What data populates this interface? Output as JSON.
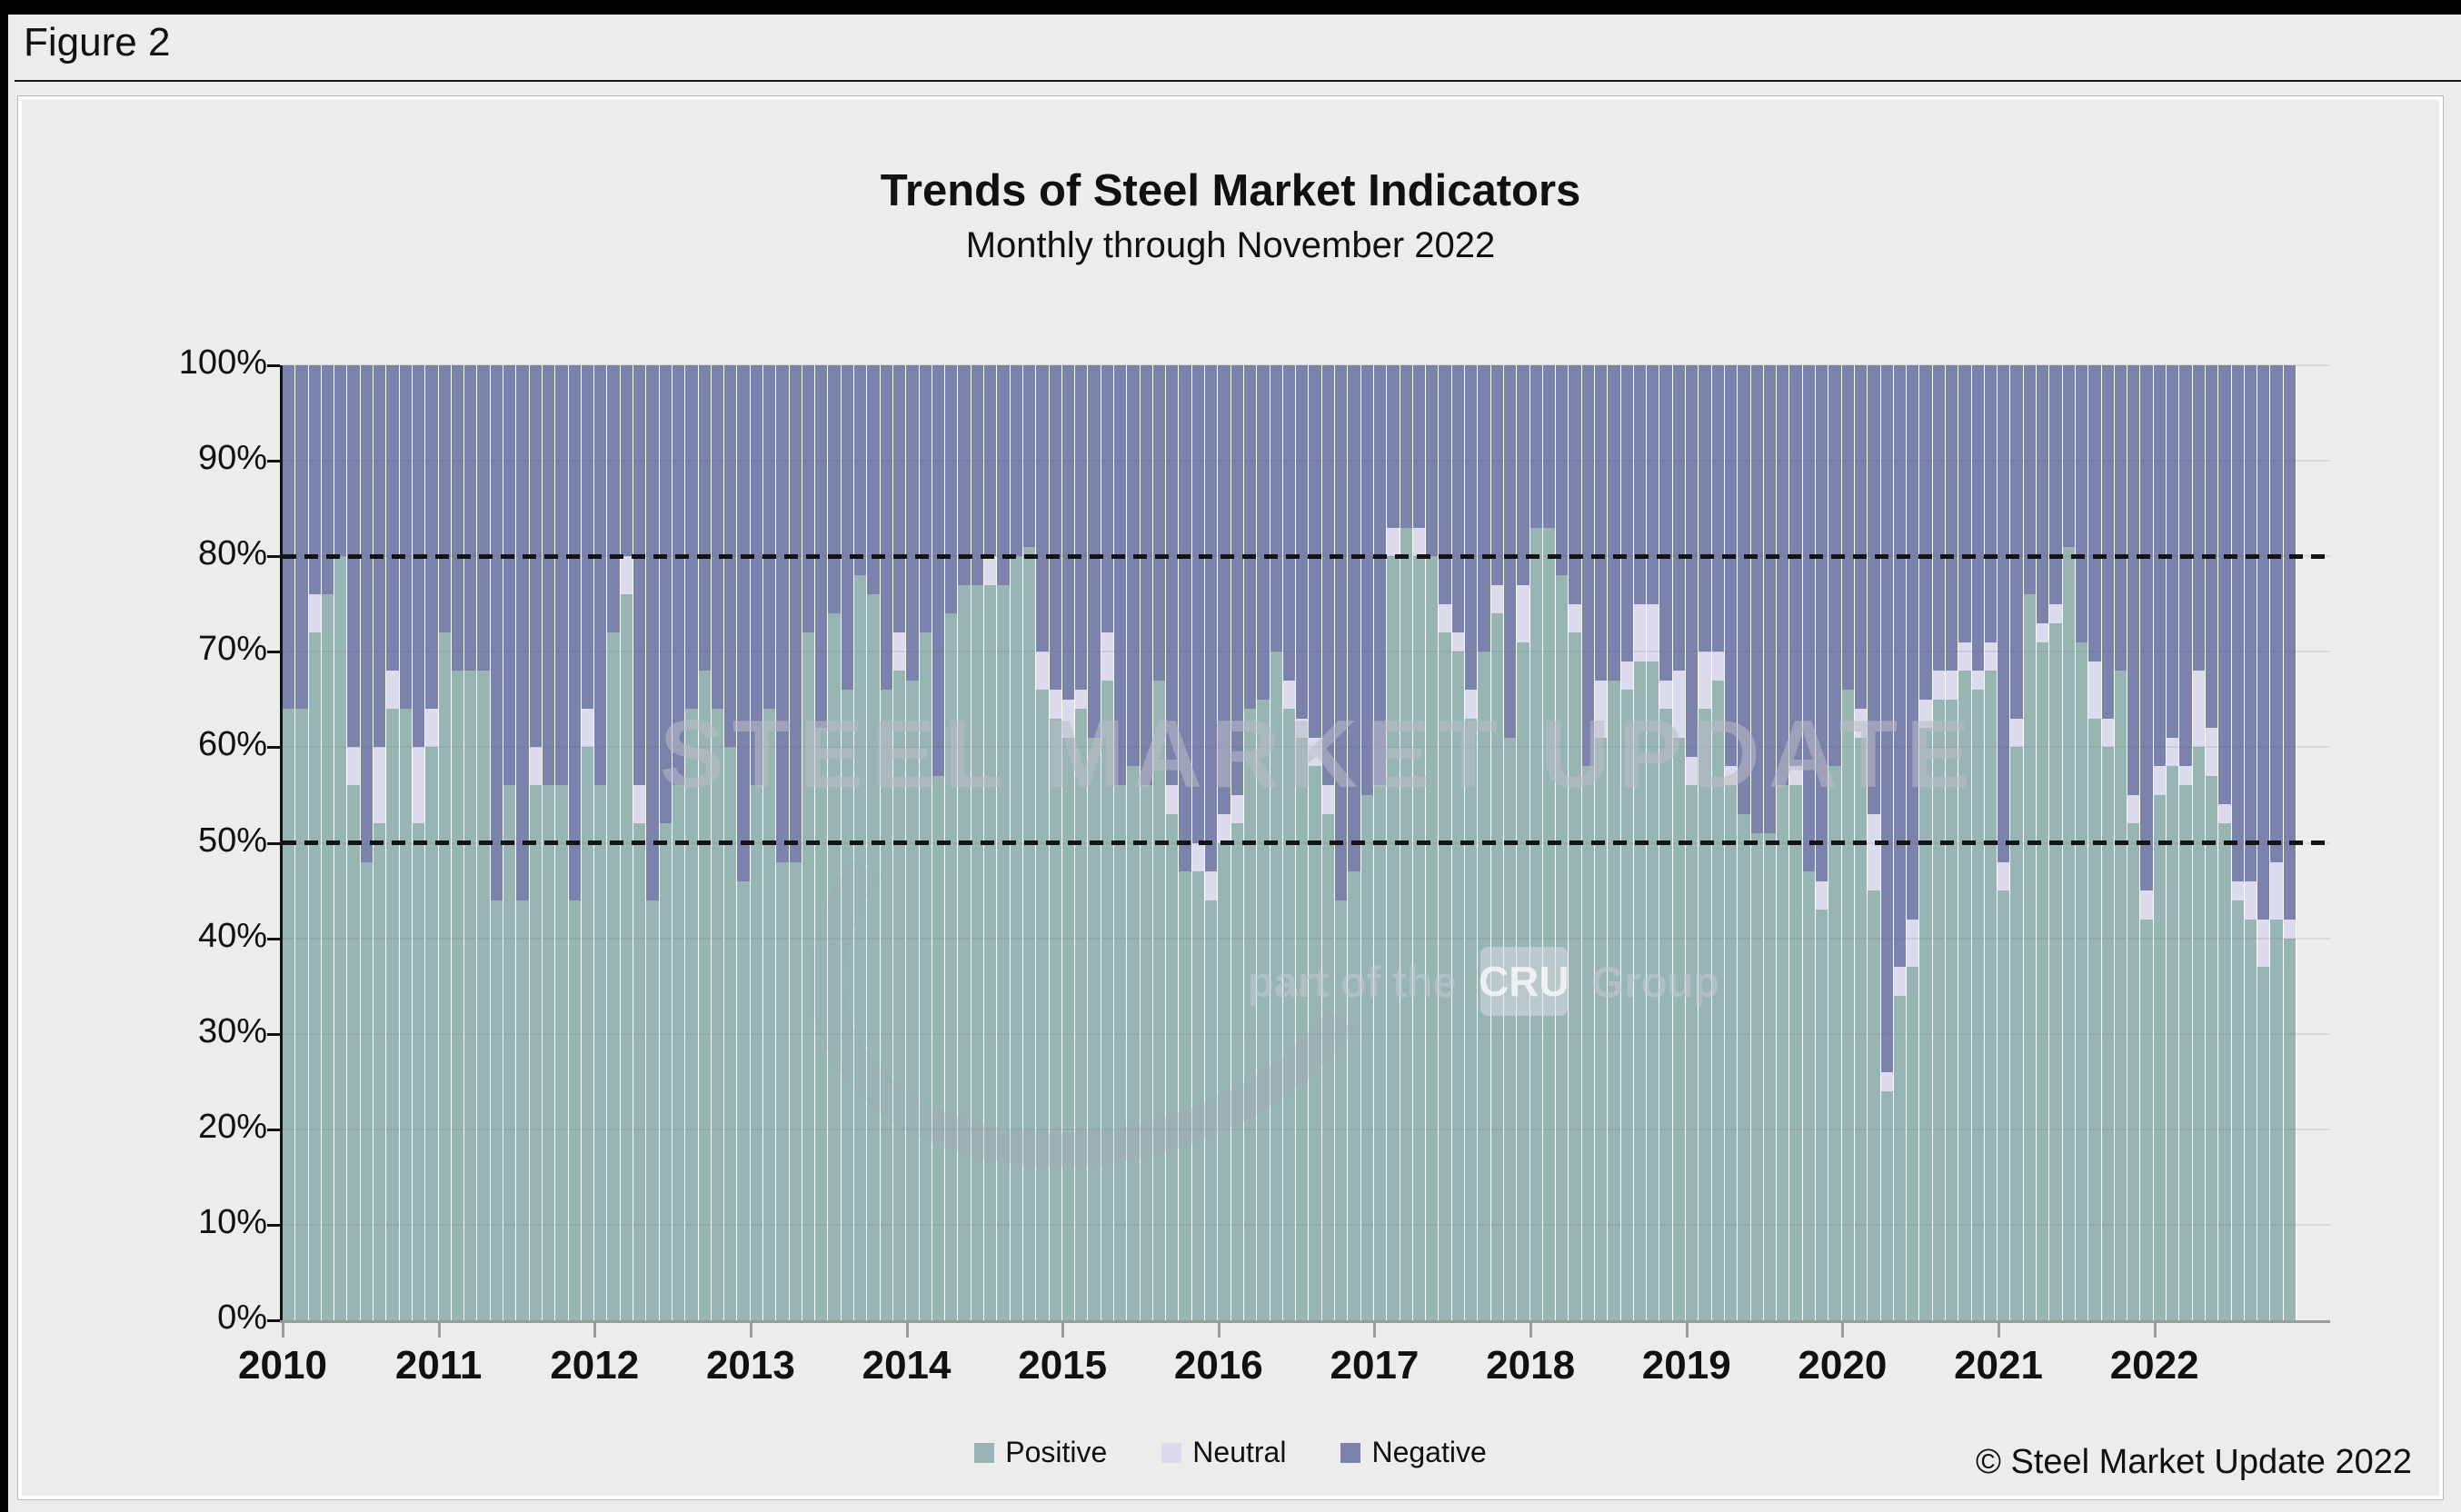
{
  "window": {
    "figure_label": "Figure 2"
  },
  "header": {
    "title": "Trends of Steel Market Indicators",
    "subtitle": "Monthly through November 2022"
  },
  "footer": {
    "copyright": "© Steel Market Update 2022"
  },
  "watermark": {
    "line1": "STEEL MARKET UPDATE",
    "line2_prefix": "part of the",
    "badge": "CRU",
    "line2_suffix": "Group"
  },
  "legend": [
    {
      "label": "Positive",
      "color": "#97b5b2"
    },
    {
      "label": "Neutral",
      "color": "#dcdbee"
    },
    {
      "label": "Negative",
      "color": "#7b82ab"
    }
  ],
  "colors": {
    "positive": "#97b5b2",
    "neutral": "#dcdbee",
    "negative": "#7b82ab",
    "background": "#ececec",
    "axis_x": "#9b9b9b",
    "axis_y": "#111111",
    "reference_line": "#141414"
  },
  "chart_data": {
    "type": "bar",
    "stacked": true,
    "unit": "percent",
    "title": "Trends of Steel Market Indicators",
    "subtitle": "Monthly through November 2022",
    "x_start": "2010-01",
    "x_end": "2022-11",
    "months_per_year": 12,
    "x_tick_labels": [
      "2010",
      "2011",
      "2012",
      "2013",
      "2014",
      "2015",
      "2016",
      "2017",
      "2018",
      "2019",
      "2020",
      "2021",
      "2022"
    ],
    "y_tick_labels": [
      "0%",
      "10%",
      "20%",
      "30%",
      "40%",
      "50%",
      "60%",
      "70%",
      "80%",
      "90%",
      "100%"
    ],
    "ylim": [
      0,
      100
    ],
    "grid": true,
    "reference_lines": [
      50,
      80
    ],
    "legend_position": "bottom",
    "series": [
      {
        "name": "Positive",
        "color": "#97b5b2",
        "values": [
          64,
          64,
          72,
          76,
          80,
          56,
          48,
          52,
          64,
          64,
          52,
          60,
          72,
          68,
          68,
          68,
          44,
          56,
          44,
          56,
          56,
          56,
          44,
          60,
          56,
          72,
          76,
          52,
          44,
          52,
          56,
          64,
          68,
          64,
          60,
          46,
          56,
          64,
          48,
          48,
          72,
          62,
          74,
          66,
          78,
          76,
          66,
          68,
          67,
          72,
          57,
          74,
          77,
          77,
          77,
          77,
          80,
          81,
          66,
          63,
          61,
          64,
          61,
          67,
          56,
          58,
          56,
          67,
          53,
          47,
          47,
          44,
          50,
          52,
          64,
          65,
          70,
          64,
          61,
          58,
          53,
          44,
          47,
          55,
          56,
          80,
          83,
          80,
          80,
          72,
          70,
          63,
          70,
          74,
          61,
          71,
          83,
          83,
          78,
          72,
          58,
          61,
          67,
          66,
          69,
          69,
          64,
          61,
          56,
          64,
          67,
          56,
          53,
          51,
          51,
          56,
          56,
          47,
          43,
          58,
          66,
          61,
          45,
          24,
          34,
          37,
          62,
          65,
          65,
          68,
          66,
          68,
          45,
          60,
          76,
          71,
          73,
          81,
          71,
          63,
          60,
          68,
          52,
          42,
          55,
          58,
          56,
          60,
          57,
          52,
          44,
          42,
          37,
          42,
          40
        ]
      },
      {
        "name": "Neutral",
        "color": "#dcdbee",
        "values": [
          0,
          0,
          4,
          0,
          0,
          4,
          0,
          8,
          4,
          0,
          8,
          4,
          0,
          0,
          0,
          0,
          0,
          0,
          0,
          4,
          0,
          0,
          0,
          4,
          0,
          0,
          4,
          4,
          0,
          0,
          0,
          0,
          0,
          0,
          0,
          0,
          0,
          0,
          0,
          0,
          0,
          0,
          0,
          0,
          0,
          0,
          0,
          4,
          0,
          0,
          0,
          0,
          0,
          0,
          3,
          0,
          0,
          0,
          4,
          3,
          4,
          2,
          0,
          5,
          0,
          0,
          0,
          0,
          3,
          0,
          3,
          3,
          3,
          3,
          0,
          0,
          0,
          3,
          2,
          3,
          3,
          0,
          0,
          0,
          0,
          3,
          0,
          3,
          0,
          3,
          2,
          3,
          0,
          3,
          0,
          6,
          0,
          0,
          0,
          3,
          0,
          6,
          0,
          3,
          6,
          6,
          3,
          7,
          3,
          6,
          3,
          2,
          0,
          0,
          0,
          0,
          2,
          0,
          3,
          0,
          0,
          3,
          8,
          2,
          3,
          5,
          3,
          3,
          3,
          3,
          2,
          3,
          3,
          3,
          0,
          2,
          2,
          0,
          0,
          6,
          3,
          0,
          3,
          3,
          3,
          3,
          2,
          8,
          5,
          2,
          2,
          4,
          5,
          6,
          2
        ]
      },
      {
        "name": "Negative",
        "color": "#7b82ab",
        "values_rule": "100 - Positive - Neutral (fills each bar to 100%)"
      }
    ]
  }
}
